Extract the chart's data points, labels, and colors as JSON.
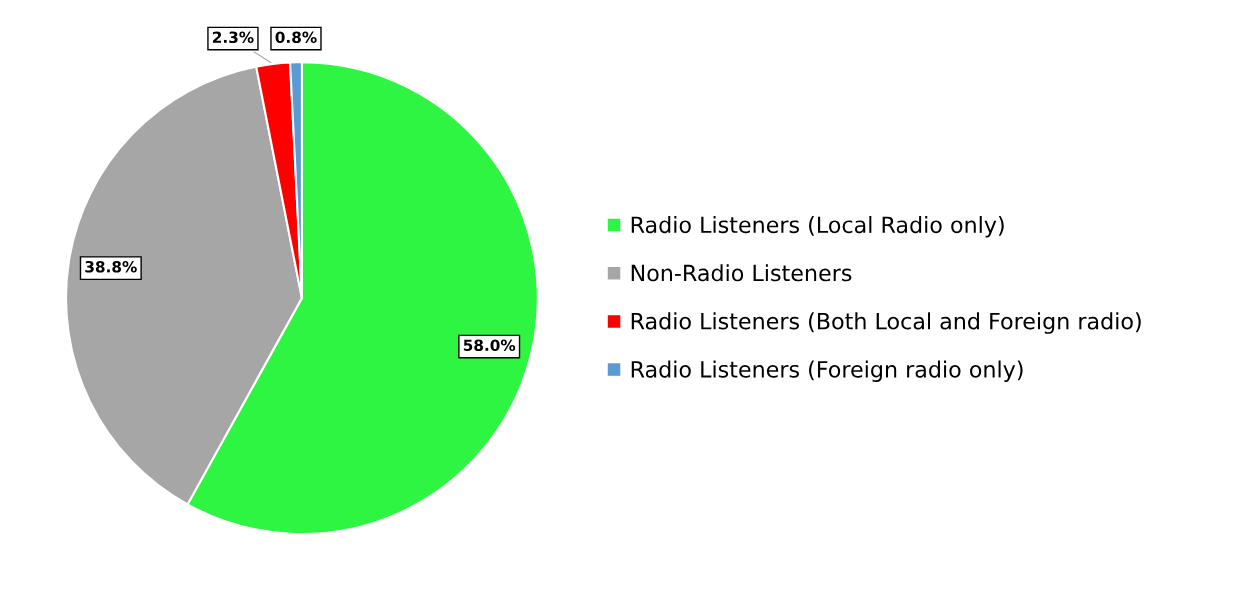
{
  "chart_data": {
    "type": "pie",
    "categories": [
      "Radio Listeners (Local Radio only)",
      "Non-Radio Listeners",
      "Radio Listeners (Both Local and Foreign radio)",
      "Radio Listeners (Foreign radio only)"
    ],
    "values": [
      58.0,
      38.8,
      2.3,
      0.8
    ],
    "colors": [
      "#2ef542",
      "#a6a6a6",
      "#ff0000",
      "#5b9bd5"
    ],
    "value_labels": [
      "58.0%",
      "38.8%",
      "2.3%",
      "0.8%"
    ],
    "legend": "right",
    "marker": "square"
  }
}
